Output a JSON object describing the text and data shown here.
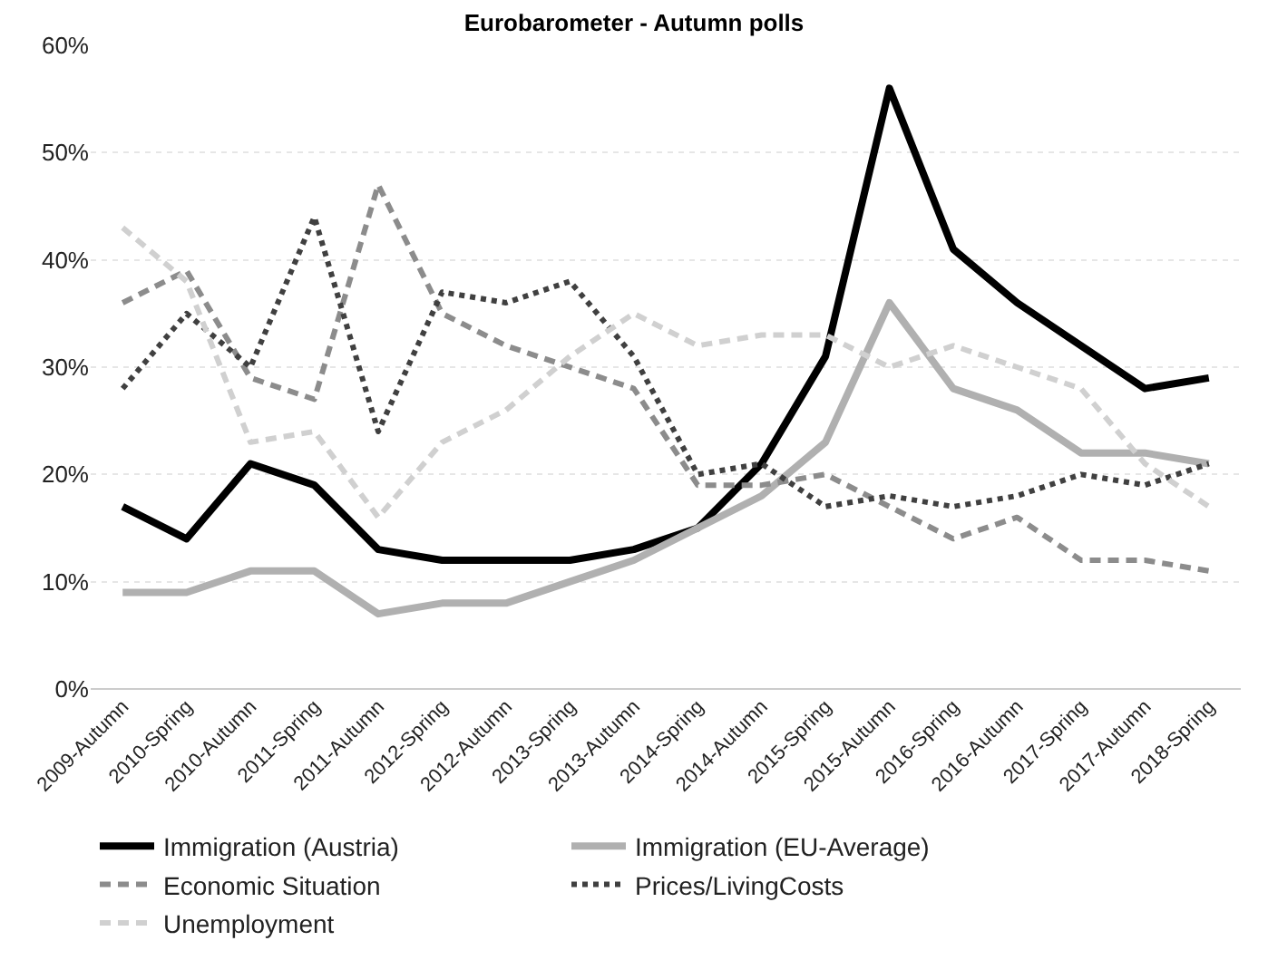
{
  "chart_data": {
    "type": "line",
    "title": "Eurobarometer - Autumn polls",
    "categories": [
      "2009-Autumn",
      "2010-Spring",
      "2010-Autumn",
      "2011-Spring",
      "2011-Autumn",
      "2012-Spring",
      "2012-Autumn",
      "2013-Spring",
      "2013-Autumn",
      "2014-Spring",
      "2014-Autumn",
      "2015-Spring",
      "2015-Autumn",
      "2016-Spring",
      "2016-Autumn",
      "2017-Spring",
      "2017-Autumn",
      "2018-Spring"
    ],
    "series": [
      {
        "name": "Immigration (Austria)",
        "color": "#000000",
        "line_style": "solid",
        "values": [
          17,
          14,
          21,
          19,
          13,
          12,
          12,
          12,
          13,
          15,
          21,
          31,
          56,
          41,
          36,
          32,
          28,
          29
        ]
      },
      {
        "name": "Immigration (EU-Average)",
        "color": "#b0b0b0",
        "line_style": "solid",
        "values": [
          9,
          9,
          11,
          11,
          7,
          8,
          8,
          10,
          12,
          15,
          18,
          23,
          36,
          28,
          26,
          22,
          22,
          21
        ]
      },
      {
        "name": "Economic Situation",
        "color": "#8c8c8c",
        "line_style": "dashed",
        "values": [
          36,
          39,
          29,
          27,
          47,
          35,
          32,
          30,
          28,
          19,
          19,
          20,
          17,
          14,
          16,
          12,
          12,
          11
        ]
      },
      {
        "name": "Prices/LivingCosts",
        "color": "#404040",
        "line_style": "dotted",
        "values": [
          28,
          35,
          30,
          44,
          24,
          37,
          36,
          38,
          31,
          20,
          21,
          17,
          18,
          17,
          18,
          20,
          19,
          21
        ]
      },
      {
        "name": "Unemployment",
        "color": "#d0d0d0",
        "line_style": "dashed",
        "values": [
          43,
          38,
          23,
          24,
          16,
          23,
          26,
          31,
          35,
          32,
          33,
          33,
          30,
          32,
          30,
          28,
          21,
          17
        ]
      }
    ],
    "ylim": [
      0,
      60
    ],
    "yticks": [
      {
        "value": 0,
        "label": "0%"
      },
      {
        "value": 10,
        "label": "10%"
      },
      {
        "value": 20,
        "label": "20%"
      },
      {
        "value": 30,
        "label": "30%"
      },
      {
        "value": 40,
        "label": "40%"
      },
      {
        "value": 50,
        "label": "50%"
      },
      {
        "value": 60,
        "label": "60%"
      }
    ],
    "grid": "y",
    "legend": "bottom",
    "marker": "none"
  }
}
